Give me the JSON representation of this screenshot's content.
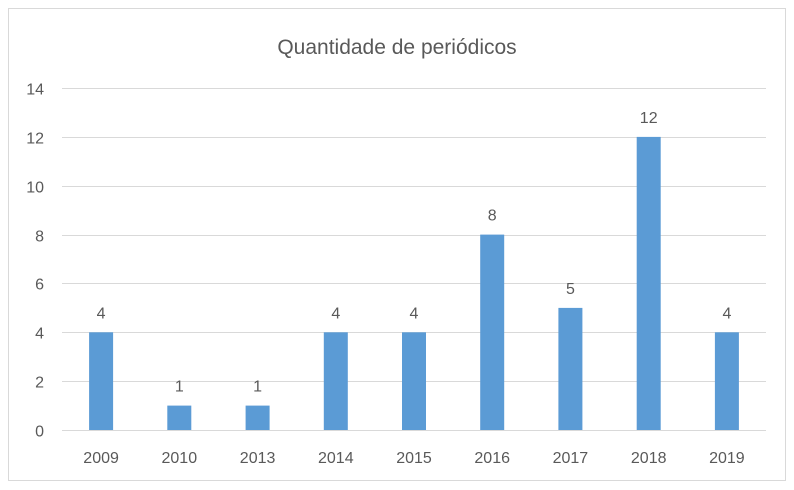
{
  "chart_data": {
    "type": "bar",
    "title": "Quantidade de periódicos",
    "xlabel": "",
    "ylabel": "",
    "categories": [
      "2009",
      "2010",
      "2013",
      "2014",
      "2015",
      "2016",
      "2017",
      "2018",
      "2019"
    ],
    "values": [
      4,
      1,
      1,
      4,
      4,
      8,
      5,
      12,
      4
    ],
    "ylim": [
      0,
      14
    ],
    "yticks": [
      0,
      2,
      4,
      6,
      8,
      10,
      12,
      14
    ],
    "grid": true,
    "legend": "none",
    "data_labels": true,
    "colors": {
      "bar": "#5B9BD5",
      "grid": "#D9D9D9",
      "text": "#595959",
      "border": "#D9D9D9",
      "background": "#FFFFFF"
    }
  }
}
